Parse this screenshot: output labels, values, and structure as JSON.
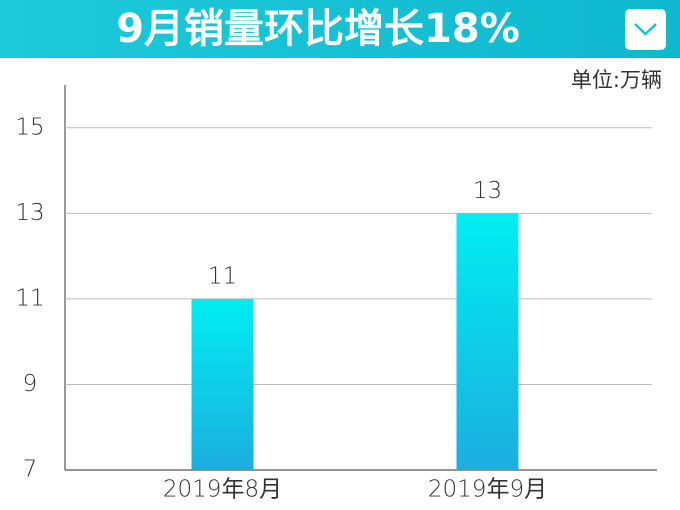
{
  "chart_data": {
    "type": "bar",
    "title": "9月销量环比增长18%",
    "unit": "单位:万辆",
    "categories": [
      "2019年8月",
      "2019年9月"
    ],
    "values": [
      11,
      13
    ],
    "gradient": [
      "#00eef2",
      "#1caedf"
    ],
    "ylim": [
      7,
      16
    ],
    "yticks": [
      7,
      9,
      11,
      13,
      15
    ],
    "grid": true
  }
}
